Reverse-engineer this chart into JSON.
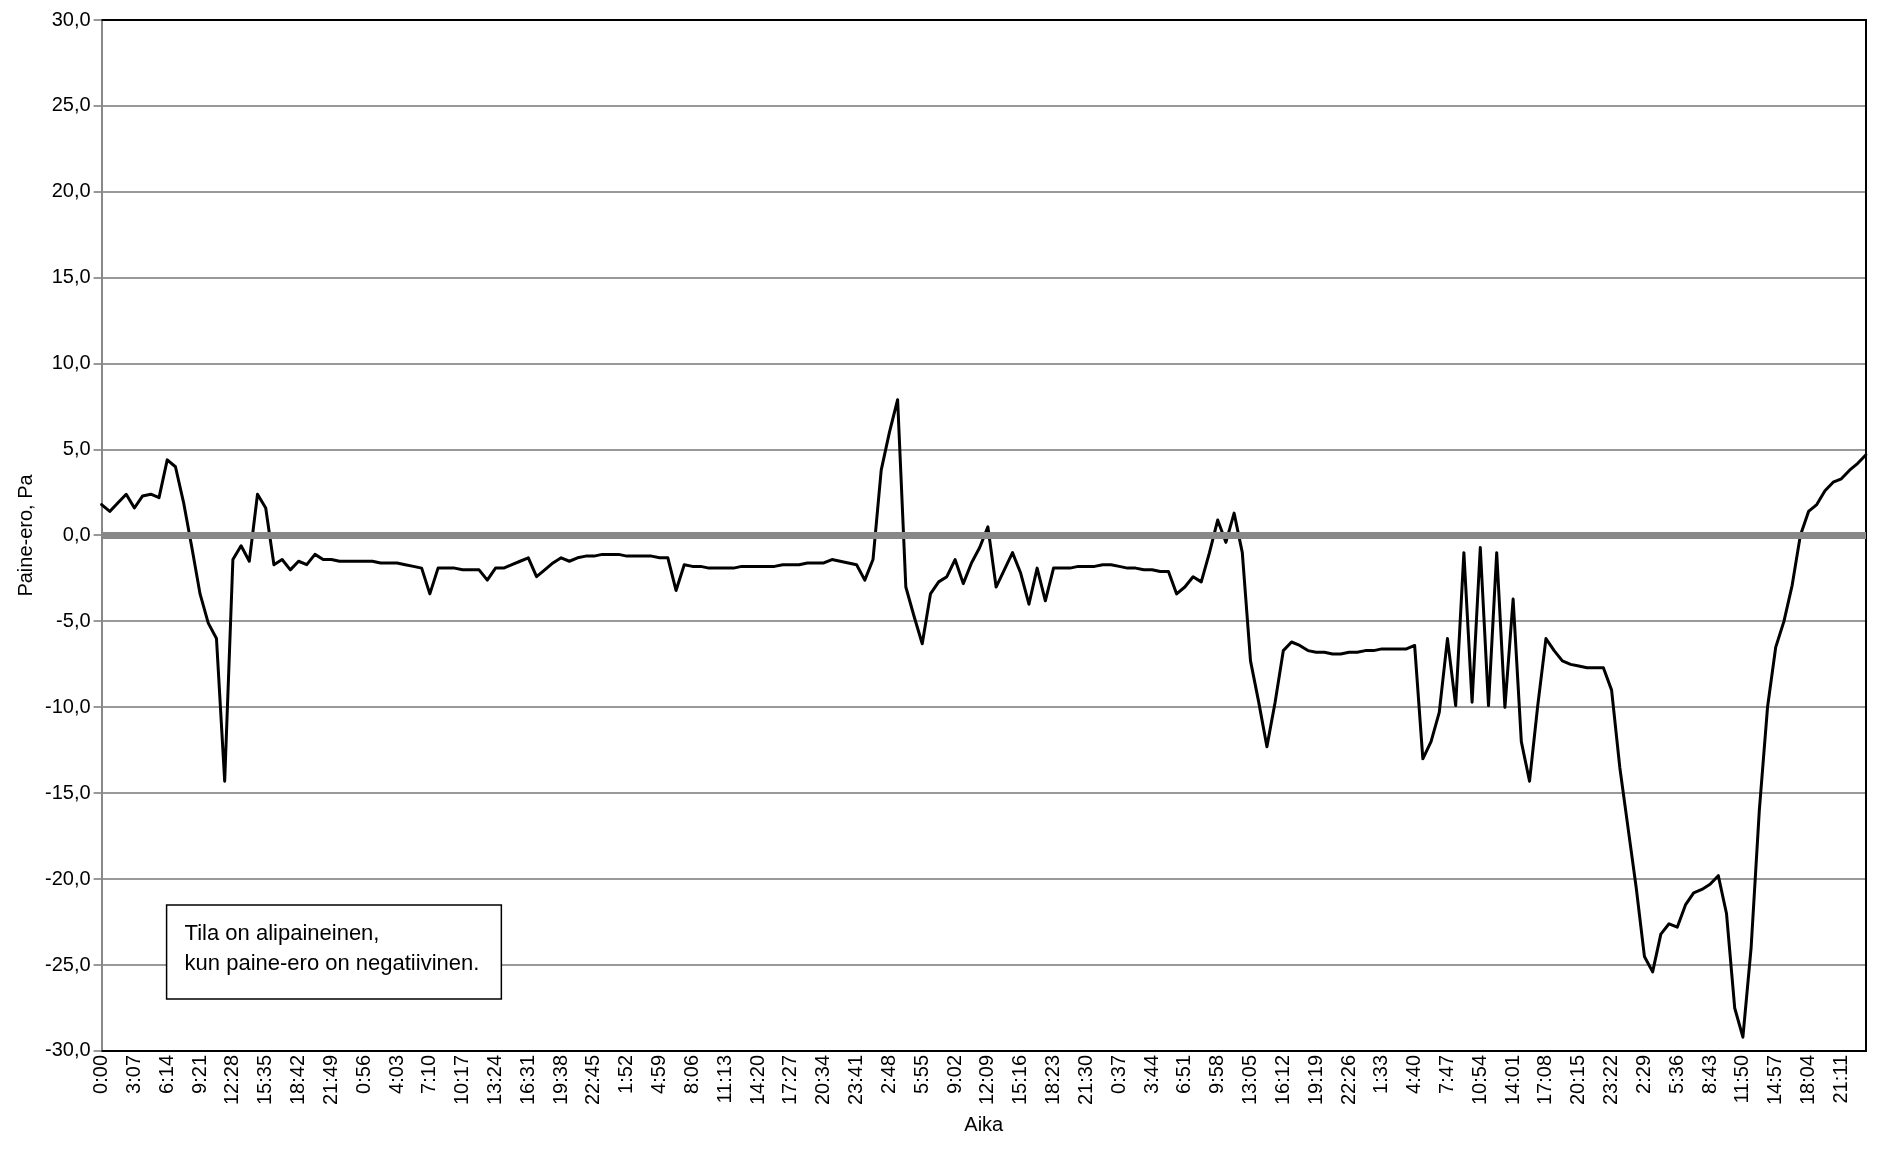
{
  "chart_data": {
    "type": "line",
    "xlabel": "Aika",
    "ylabel": "Paine-ero, Pa",
    "annotations": [
      "Tila on alipaineinen,\nkun paine-ero on negatiivinen."
    ],
    "categories": [
      "0:00",
      null,
      null,
      null,
      "3:07",
      null,
      null,
      null,
      "6:14",
      null,
      null,
      null,
      "9:21",
      null,
      null,
      null,
      "12:28",
      null,
      null,
      null,
      "15:35",
      null,
      null,
      null,
      "18:42",
      null,
      null,
      null,
      "21:49",
      null,
      null,
      null,
      "0:56",
      null,
      null,
      null,
      "4:03",
      null,
      null,
      null,
      "7:10",
      null,
      null,
      null,
      "10:17",
      null,
      null,
      null,
      "13:24",
      null,
      null,
      null,
      "16:31",
      null,
      null,
      null,
      "19:38",
      null,
      null,
      null,
      "22:45",
      null,
      null,
      null,
      "1:52",
      null,
      null,
      null,
      "4:59",
      null,
      null,
      null,
      "8:06",
      null,
      null,
      null,
      "11:13",
      null,
      null,
      null,
      "14:20",
      null,
      null,
      null,
      "17:27",
      null,
      null,
      null,
      "20:34",
      null,
      null,
      null,
      "23:41",
      null,
      null,
      null,
      "2:48",
      null,
      null,
      null,
      "5:55",
      null,
      null,
      null,
      "9:02",
      null,
      null,
      null,
      "12:09",
      null,
      null,
      null,
      "15:16",
      null,
      null,
      null,
      "18:23",
      null,
      null,
      null,
      "21:30",
      null,
      null,
      null,
      "0:37",
      null,
      null,
      null,
      "3:44",
      null,
      null,
      null,
      "6:51",
      null,
      null,
      null,
      "9:58",
      null,
      null,
      null,
      "13:05",
      null,
      null,
      null,
      "16:12",
      null,
      null,
      null,
      "19:19",
      null,
      null,
      null,
      "22:26",
      null,
      null,
      null,
      "1:33",
      null,
      null,
      null,
      "4:40",
      null,
      null,
      null,
      "7:47",
      null,
      null,
      null,
      "10:54",
      null,
      null,
      null,
      "14:01",
      null,
      null,
      null,
      "17:08",
      null,
      null,
      null,
      "20:15",
      null,
      null,
      null,
      "23:22",
      null,
      null,
      null,
      "2:29",
      null,
      null,
      null,
      "5:36",
      null,
      null,
      null,
      "8:43",
      null,
      null,
      null,
      "11:50",
      null,
      null,
      null,
      "14:57",
      null,
      null,
      null,
      "18:04",
      null,
      null,
      null,
      "21:11",
      null,
      null,
      null
    ],
    "ylim": [
      -30,
      30
    ],
    "yticks": [
      {
        "value": 30,
        "label": "30,0"
      },
      {
        "value": 25,
        "label": "25,0"
      },
      {
        "value": 20,
        "label": "20,0"
      },
      {
        "value": 15,
        "label": "15,0"
      },
      {
        "value": 10,
        "label": "10,0"
      },
      {
        "value": 5,
        "label": "5,0"
      },
      {
        "value": 0,
        "label": "0,0"
      },
      {
        "value": -5,
        "label": "-5,0"
      },
      {
        "value": -10,
        "label": "-10,0"
      },
      {
        "value": -15,
        "label": "-15,0"
      },
      {
        "value": -20,
        "label": "-20,0"
      },
      {
        "value": -25,
        "label": "-25,0"
      },
      {
        "value": -30,
        "label": "-30,0"
      }
    ],
    "ref_lines": [
      {
        "axis": "y",
        "value": 0,
        "color": "#888888"
      }
    ],
    "grid": "y",
    "legend": false,
    "marker": "none",
    "line_style": "solid",
    "series": [
      {
        "color": "#000000",
        "values": [
          1.8,
          1.4,
          1.9,
          2.4,
          1.6,
          2.3,
          2.4,
          2.2,
          4.4,
          4.0,
          1.9,
          -0.7,
          -3.4,
          -5.1,
          -6.0,
          -14.3,
          -1.4,
          -0.6,
          -1.5,
          2.4,
          1.6,
          -1.7,
          -1.4,
          -2.0,
          -1.5,
          -1.7,
          -1.1,
          -1.4,
          -1.4,
          -1.5,
          -1.5,
          -1.5,
          -1.5,
          -1.5,
          -1.6,
          -1.6,
          -1.6,
          -1.7,
          -1.8,
          -1.9,
          -3.4,
          -1.9,
          -1.9,
          -1.9,
          -2.0,
          -2.0,
          -2.0,
          -2.6,
          -1.9,
          -1.9,
          -1.7,
          -1.5,
          -1.3,
          -2.4,
          -2.0,
          -1.6,
          -1.3,
          -1.5,
          -1.3,
          -1.2,
          -1.2,
          -1.1,
          -1.1,
          -1.1,
          -1.2,
          -1.2,
          -1.2,
          -1.2,
          -1.3,
          -1.3,
          -3.2,
          -1.7,
          -1.8,
          -1.8,
          -1.9,
          -1.9,
          -1.9,
          -1.9,
          -1.8,
          -1.8,
          -1.8,
          -1.8,
          -1.8,
          -1.7,
          -1.7,
          -1.7,
          -1.6,
          -1.6,
          -1.6,
          -1.4,
          -1.5,
          -1.6,
          -1.7,
          -2.6,
          -1.4,
          3.8,
          6.0,
          7.9,
          -3.0,
          -4.7,
          -6.3,
          -3.4,
          -2.7,
          -2.4,
          -1.4,
          -2.8,
          -1.6,
          -0.7,
          0.5,
          -3.0,
          -2.0,
          -1.0,
          -2.2,
          -4.0,
          -1.9,
          -3.8,
          -1.9,
          -1.9,
          -1.9,
          -1.8,
          -1.8,
          -1.8,
          -1.7,
          -1.7,
          -1.8,
          -1.9,
          -1.9,
          -2.0,
          -2.0,
          -2.1,
          -2.1,
          -3.4,
          -3.0,
          -2.4,
          -2.7,
          -1.0,
          0.9,
          -0.4,
          1.3,
          -1.0,
          -7.3,
          -9.7,
          -12.3,
          -9.7,
          -6.7,
          -6.2,
          -6.4,
          -6.7,
          -6.8,
          -6.8,
          -6.9,
          -6.9,
          -6.8,
          -6.8,
          -6.7,
          -6.7,
          -6.6,
          -6.6,
          -6.6,
          -6.6,
          -6.4,
          -13.0,
          -12.0,
          -10.3,
          -6.0,
          -9.9,
          -1.0,
          -9.7,
          -0.7,
          -9.9,
          -1.0,
          -10.0,
          -3.7,
          -12.0,
          -14.3,
          -9.9,
          -6.0,
          -6.7,
          -7.3,
          -7.5,
          -7.6,
          -7.7,
          -7.7,
          -7.7,
          -9.0,
          -13.5,
          -17.0,
          -20.5,
          -24.5,
          -25.4,
          -23.2,
          -22.6,
          -22.8,
          -21.5,
          -20.8,
          -20.6,
          -20.3,
          -19.8,
          -22.0,
          -27.5,
          -29.2,
          -24.0,
          -16.0,
          -10.0,
          -6.5,
          -5.0,
          -2.9,
          0.0,
          1.4,
          1.8,
          2.6,
          3.1,
          3.3,
          3.8,
          4.2,
          4.7
        ]
      }
    ]
  }
}
